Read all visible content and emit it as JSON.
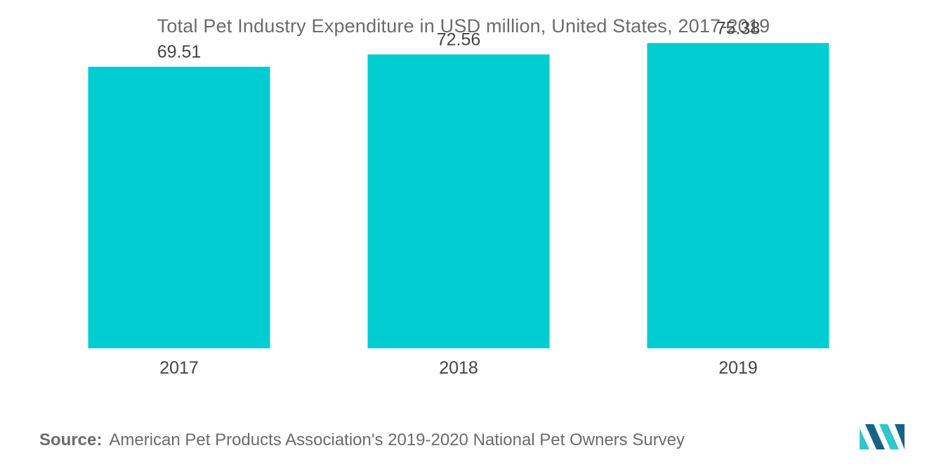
{
  "chart_data": {
    "type": "bar",
    "title": "Total Pet Industry Expenditure in USD million, United States, 2017-2019",
    "categories": [
      "2017",
      "2018",
      "2019"
    ],
    "values": [
      69.51,
      72.56,
      75.38
    ],
    "data_labels": [
      "69.51",
      "72.56",
      "75.38"
    ],
    "xlabel": "",
    "ylabel": "",
    "ylim": [
      0,
      86
    ],
    "grid": false,
    "legend": "none"
  },
  "colors": {
    "bar": "#00cdd1",
    "text": "#6b6b6b",
    "value_text": "#444444",
    "logo_dark": "#17628a",
    "logo_light": "#2fc7cc"
  },
  "source": {
    "label": "Source:",
    "text": "American Pet Products Association's 2019-2020 National Pet Owners Survey"
  },
  "logo": {
    "icon": "mordor-intelligence-logo-icon"
  }
}
